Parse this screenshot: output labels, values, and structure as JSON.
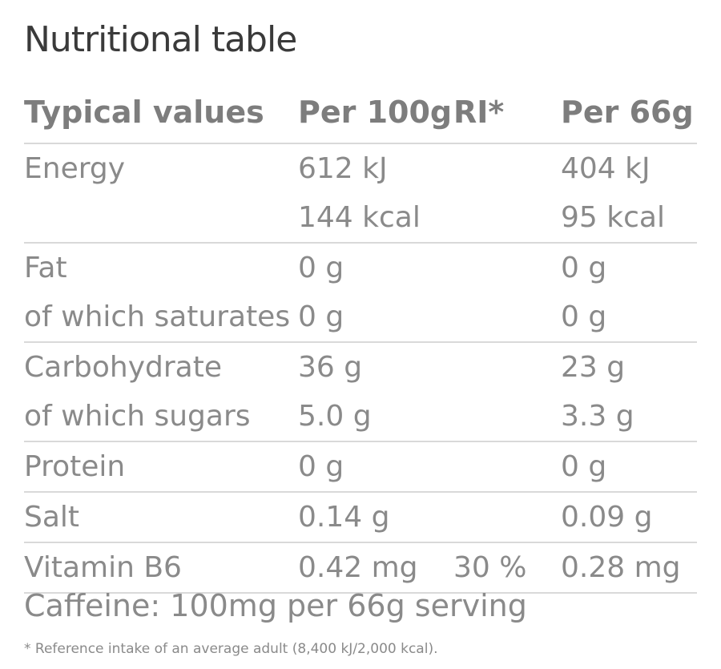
{
  "title": "Nutritional table",
  "header": {
    "col1": "Typical values",
    "col2": "Per 100g",
    "col3": "RI*",
    "col4": "Per 66g"
  },
  "groups": [
    {
      "rows": [
        {
          "label": "Energy",
          "per100": "612 kJ",
          "ri": "",
          "per66": "404 kJ"
        },
        {
          "label": "",
          "per100": "144 kcal",
          "ri": "",
          "per66": "95 kcal"
        }
      ]
    },
    {
      "rows": [
        {
          "label": "Fat",
          "per100": "0 g",
          "ri": "",
          "per66": "0 g"
        },
        {
          "label": "of which saturates",
          "per100": "0 g",
          "ri": "",
          "per66": "0 g"
        }
      ]
    },
    {
      "rows": [
        {
          "label": "Carbohydrate",
          "per100": "36 g",
          "ri": "",
          "per66": "23 g"
        },
        {
          "label": "of which sugars",
          "per100": "5.0 g",
          "ri": "",
          "per66": "3.3 g"
        }
      ]
    },
    {
      "rows": [
        {
          "label": "Protein",
          "per100": "0 g",
          "ri": "",
          "per66": "0 g"
        }
      ]
    },
    {
      "rows": [
        {
          "label": "Salt",
          "per100": "0.14 g",
          "ri": "",
          "per66": "0.09 g"
        }
      ]
    },
    {
      "rows": [
        {
          "label": "Vitamin B6",
          "per100": "0.42 mg",
          "ri": "30 %",
          "per66": "0.28 mg"
        }
      ]
    }
  ],
  "caffeine": "Caffeine: 100mg per 66g serving",
  "footnote": "* Reference intake of an average adult (8,400 kJ/2,000 kcal)."
}
